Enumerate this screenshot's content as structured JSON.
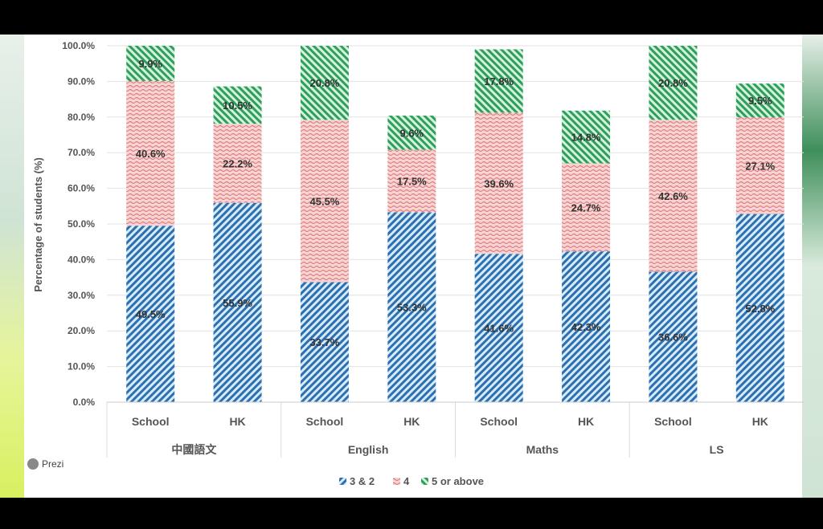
{
  "app": {
    "brand": "Prezi"
  },
  "chart_data": {
    "type": "bar",
    "stacked": true,
    "ylabel": "Percentage of students (%)",
    "ylim": [
      0,
      100
    ],
    "yticks": [
      "0.0%",
      "10.0%",
      "20.0%",
      "30.0%",
      "40.0%",
      "50.0%",
      "60.0%",
      "70.0%",
      "80.0%",
      "90.0%",
      "100.0%"
    ],
    "grid": true,
    "legend_position": "bottom",
    "groups": [
      "中國語文",
      "English",
      "Maths",
      "LS"
    ],
    "categories": [
      "School",
      "HK",
      "School",
      "HK",
      "School",
      "HK",
      "School",
      "HK"
    ],
    "series": [
      {
        "name": "3 & 2",
        "color": "#2e6fb0",
        "values": [
          49.5,
          55.9,
          33.7,
          53.3,
          41.6,
          42.3,
          36.6,
          52.8
        ],
        "labels": [
          "49.5%",
          "55.9%",
          "33.7%",
          "53.3%",
          "41.6%",
          "42.3%",
          "36.6%",
          "52.8%"
        ]
      },
      {
        "name": "4",
        "color": "#e07a7a",
        "values": [
          40.6,
          22.2,
          45.5,
          17.5,
          39.6,
          24.7,
          42.6,
          27.1
        ],
        "labels": [
          "40.6%",
          "22.2%",
          "45.5%",
          "17.5%",
          "39.6%",
          "24.7%",
          "42.6%",
          "27.1%"
        ]
      },
      {
        "name": "5 or above",
        "color": "#2f9e5a",
        "values": [
          9.9,
          10.5,
          20.8,
          9.6,
          17.8,
          14.8,
          20.8,
          9.5
        ],
        "labels": [
          "9.9%",
          "10.5%",
          "20.8%",
          "9.6%",
          "17.8%",
          "14.8%",
          "20.8%",
          "9.5%"
        ]
      }
    ]
  }
}
